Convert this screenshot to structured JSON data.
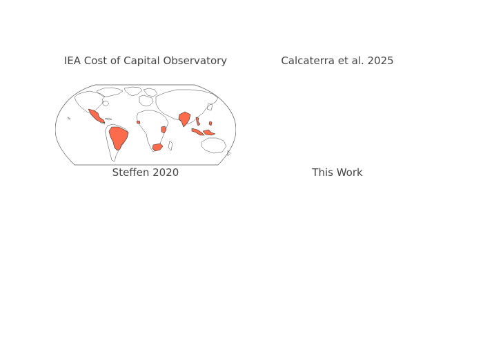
{
  "panels": [
    {
      "title": "IEA Cost of Capital Observatory",
      "highlight_color": "#fc6c4c",
      "highlighted_regions": [
        "Mexico",
        "Brazil",
        "Senegal",
        "Kenya",
        "South Africa",
        "India",
        "Indonesia",
        "Vietnam",
        "Philippines"
      ]
    },
    {
      "title": "Calcaterra et al. 2025"
    },
    {
      "title": "Steffen 2020"
    },
    {
      "title": "This Work"
    }
  ]
}
